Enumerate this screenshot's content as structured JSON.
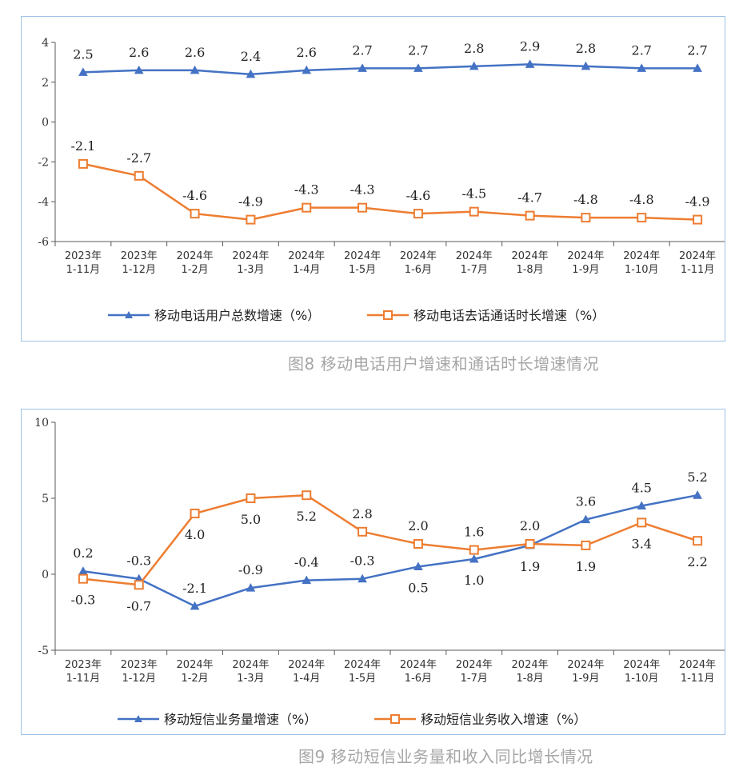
{
  "chart_data": [
    {
      "type": "line",
      "categories": [
        "2023年\n1-11月",
        "2023年\n1-12月",
        "2024年\n1-2月",
        "2024年\n1-3月",
        "2024年\n1-4月",
        "2024年\n1-5月",
        "2024年\n1-6月",
        "2024年\n1-7月",
        "2024年\n1-8月",
        "2024年\n1-9月",
        "2024年\n1-10月",
        "2024年\n1-11月"
      ],
      "series": [
        {
          "name": "移动电话用户总数增速（%）",
          "color": "#4472c4",
          "marker": "triangle",
          "values": [
            2.5,
            2.6,
            2.6,
            2.4,
            2.6,
            2.7,
            2.7,
            2.8,
            2.9,
            2.8,
            2.7,
            2.7
          ],
          "labels": [
            "2.5",
            "2.6",
            "2.6",
            "2.4",
            "2.6",
            "2.7",
            "2.7",
            "2.8",
            "2.9",
            "2.8",
            "2.7",
            "2.7"
          ],
          "label_pos": [
            "above",
            "above",
            "above",
            "above",
            "above",
            "above",
            "above",
            "above",
            "above",
            "above",
            "above",
            "above"
          ]
        },
        {
          "name": "移动电话去话通话时长增速（%）",
          "color": "#ed7d31",
          "marker": "square",
          "values": [
            -2.1,
            -2.7,
            -4.6,
            -4.9,
            -4.3,
            -4.3,
            -4.6,
            -4.5,
            -4.7,
            -4.8,
            -4.8,
            -4.9
          ],
          "labels": [
            "-2.1",
            "-2.7",
            "-4.6",
            "-4.9",
            "-4.3",
            "-4.3",
            "-4.6",
            "-4.5",
            "-4.7",
            "-4.8",
            "-4.8",
            "-4.9"
          ],
          "label_pos": [
            "above",
            "above",
            "above",
            "above",
            "above",
            "above",
            "above",
            "above",
            "above",
            "above",
            "above",
            "above"
          ]
        }
      ],
      "ylim": [
        -6,
        4
      ],
      "yticks": [
        -6,
        -4,
        -2,
        0,
        2,
        4
      ],
      "ytick_labels": [
        "-6",
        "-4",
        "-2",
        "0",
        "2",
        "4"
      ],
      "title": "",
      "xlabel": "",
      "ylabel": "",
      "legend_position": "bottom",
      "grid": false
    },
    {
      "type": "line",
      "categories": [
        "2023年\n1-11月",
        "2023年\n1-12月",
        "2024年\n1-2月",
        "2024年\n1-3月",
        "2024年\n1-4月",
        "2024年\n1-5月",
        "2024年\n1-6月",
        "2024年\n1-7月",
        "2024年\n1-8月",
        "2024年\n1-9月",
        "2024年\n1-10月",
        "2024年\n1-11月"
      ],
      "series": [
        {
          "name": "移动短信业务量增速（%）",
          "color": "#4472c4",
          "marker": "triangle",
          "values": [
            0.2,
            -0.3,
            -2.1,
            -0.9,
            -0.4,
            -0.3,
            0.5,
            1.0,
            1.9,
            3.6,
            4.5,
            5.2
          ],
          "labels": [
            "0.2",
            "-0.3",
            "-2.1",
            "-0.9",
            "-0.4",
            "-0.3",
            "0.5",
            "1.0",
            "1.9",
            "3.6",
            "4.5",
            "5.2"
          ],
          "label_pos": [
            "above",
            "above",
            "above",
            "above",
            "above",
            "above",
            "below",
            "below",
            "below",
            "above",
            "above",
            "above"
          ]
        },
        {
          "name": "移动短信业务收入增速（%）",
          "color": "#ed7d31",
          "marker": "square",
          "values": [
            -0.3,
            -0.7,
            4.0,
            5.0,
            5.2,
            2.8,
            2.0,
            1.6,
            2.0,
            1.9,
            3.4,
            2.2
          ],
          "labels": [
            "-0.3",
            "-0.7",
            "4.0",
            "5.0",
            "5.2",
            "2.8",
            "2.0",
            "1.6",
            "2.0",
            "1.9",
            "3.4",
            "2.2"
          ],
          "label_pos": [
            "below",
            "below",
            "below",
            "below",
            "below",
            "above",
            "above",
            "above",
            "above",
            "below",
            "below",
            "below"
          ]
        }
      ],
      "ylim": [
        -5,
        10
      ],
      "yticks": [
        -5,
        0,
        5,
        10
      ],
      "ytick_labels": [
        "-5",
        "0",
        "5",
        "10"
      ],
      "title": "",
      "xlabel": "",
      "ylabel": "",
      "legend_position": "bottom",
      "grid": false
    }
  ],
  "captions": {
    "fig8": "图8 移动电话用户增速和通话时长增速情况",
    "fig9": "图9 移动短信业务量和收入同比增长情况"
  }
}
